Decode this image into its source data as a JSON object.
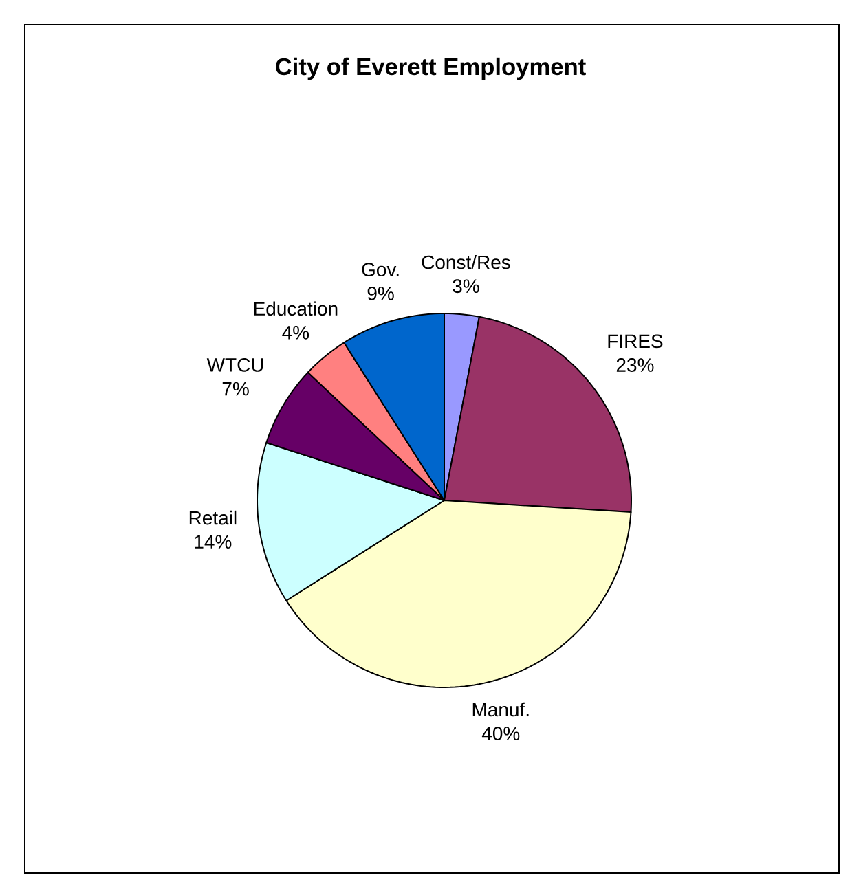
{
  "chart_data": {
    "type": "pie",
    "title": "City of Everett Employment",
    "categories": [
      "Const/Res",
      "FIRES",
      "Manuf.",
      "Retail",
      "WTCU",
      "Education",
      "Gov."
    ],
    "values": [
      3,
      23,
      40,
      14,
      7,
      4,
      9
    ],
    "value_labels": [
      "3%",
      "23%",
      "40%",
      "14%",
      "7%",
      "4%",
      "9%"
    ],
    "colors": [
      "#9999ff",
      "#993366",
      "#ffffcc",
      "#ccffff",
      "#660066",
      "#ff8080",
      "#0066cc"
    ]
  }
}
